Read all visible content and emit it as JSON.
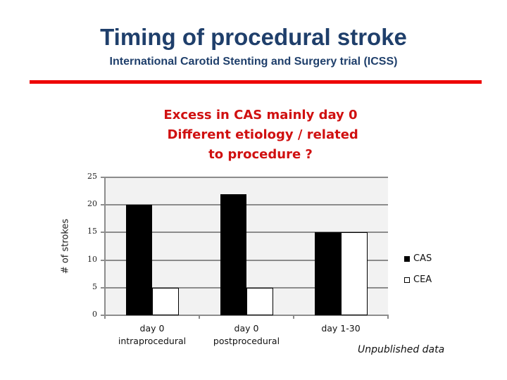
{
  "slide": {
    "title": "Timing of procedural stroke",
    "subtitle": "International Carotid Stenting and Surgery trial (ICSS)",
    "rule_color": "#ee0000",
    "callout_lines": [
      "Excess in CAS mainly day 0",
      " Different etiology / related",
      "to procedure ?"
    ],
    "footnote": "Unpublished data"
  },
  "chart_data": {
    "type": "bar",
    "title": "",
    "xlabel": "",
    "ylabel": "# of strokes",
    "ylim": [
      0,
      25
    ],
    "yticks": [
      0,
      5,
      10,
      15,
      20,
      25
    ],
    "grid": true,
    "legend_position": "right",
    "categories": [
      "day 0\nintraprocedural",
      "day 0\npostprocedural",
      "day 1-30"
    ],
    "category_lines": [
      [
        "day 0",
        "intraprocedural"
      ],
      [
        "day 0",
        "postprocedural"
      ],
      [
        "day 1-30"
      ]
    ],
    "series": [
      {
        "name": "CAS",
        "color": "#000000",
        "values": [
          20,
          22,
          15
        ]
      },
      {
        "name": "CEA",
        "color": "#ffffff",
        "values": [
          5,
          5,
          15
        ]
      }
    ],
    "plot_background": "#f2f2f2"
  }
}
